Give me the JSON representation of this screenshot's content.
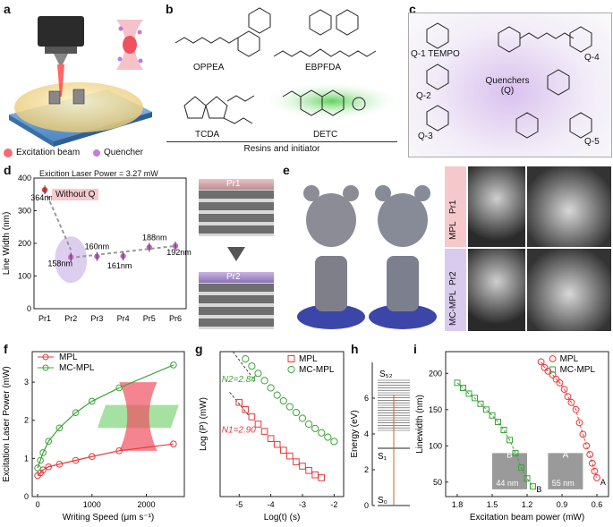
{
  "panel_labels": {
    "a": "a",
    "b": "b",
    "c": "c",
    "d": "d",
    "e": "e",
    "f": "f",
    "g": "g",
    "h": "h",
    "i": "i"
  },
  "panel_a": {
    "legend_excitation": "Excitation beam",
    "legend_quencher": "Quencher",
    "colors": {
      "excitation": "#f26c78",
      "quencher": "#c77ed8"
    }
  },
  "panel_b": {
    "molecules": [
      "OPPEA",
      "EBPFDA",
      "TCDA",
      "DETC"
    ],
    "caption": "Resins and initiator"
  },
  "panel_c": {
    "labels": [
      "Q-1 TEMPO",
      "Q-4",
      "Q-2",
      "Q-3",
      "Q-5"
    ],
    "center": [
      "Quenchers",
      "(Q)"
    ]
  },
  "panel_d": {
    "title": "Exicition Laser Power = 3.27 mW",
    "badge": "Without Q",
    "ylabel": "Line Width (nm)",
    "pr_top": "Pr1",
    "pr_bottom": "Pr2",
    "chart_data": {
      "type": "scatter",
      "categories": [
        "Pr1",
        "Pr2",
        "Pr3",
        "Pr4",
        "Pr5",
        "Pr6"
      ],
      "values": [
        364,
        158,
        160,
        161,
        188,
        192
      ],
      "annotations": [
        "364nm",
        "158nm",
        "160nm",
        "161nm",
        "188nm",
        "192nm"
      ],
      "ylim": [
        0,
        400
      ],
      "yticks": [
        "0",
        "100",
        "200",
        "300",
        "400"
      ]
    }
  },
  "panel_e": {
    "row1": [
      "MPL",
      "Pr1"
    ],
    "row2": [
      "MC-MPL",
      "Pr2"
    ]
  },
  "panel_f": {
    "chart_data": {
      "type": "line",
      "xlabel": "Writing Speed (μm s⁻¹)",
      "ylabel": "Excitation Laser Power (mW)",
      "xlim": [
        -100,
        2700
      ],
      "ylim": [
        0,
        3.8
      ],
      "xticks": [
        0,
        1000,
        2000
      ],
      "yticks": [
        0,
        1,
        2,
        3
      ],
      "series": [
        {
          "name": "MPL",
          "color": "#e8383b",
          "x": [
            0,
            50,
            100,
            200,
            400,
            700,
            1000,
            1500,
            2500
          ],
          "y": [
            0.55,
            0.62,
            0.7,
            0.78,
            0.85,
            0.95,
            1.05,
            1.2,
            1.38
          ]
        },
        {
          "name": "MC-MPL",
          "color": "#3aa537",
          "x": [
            0,
            50,
            100,
            200,
            400,
            700,
            1000,
            1500,
            2500
          ],
          "y": [
            0.75,
            0.95,
            1.15,
            1.45,
            1.8,
            2.2,
            2.5,
            2.85,
            3.45
          ]
        }
      ]
    }
  },
  "panel_g": {
    "chart_data": {
      "type": "scatter",
      "xlabel": "Log(t) (s)",
      "ylabel": "Log (P) (mW)",
      "xlim": [
        -5.6,
        -1.7
      ],
      "ylim": [
        0,
        10
      ],
      "xticks": [
        -5,
        -4,
        -3,
        -2
      ],
      "annotations": [
        "N2=2.84",
        "N1=2.90"
      ],
      "series": [
        {
          "name": "MPL",
          "color": "#e8383b",
          "x": [
            -5.0,
            -4.8,
            -4.6,
            -4.4,
            -4.2,
            -4.0,
            -3.8,
            -3.6,
            -3.4,
            -3.2,
            -3.0,
            -2.8,
            -2.6,
            -2.4
          ],
          "y": [
            6.5,
            6.0,
            5.5,
            5.0,
            4.5,
            4.0,
            3.6,
            3.2,
            2.8,
            2.4,
            2.1,
            1.8,
            1.5,
            1.3
          ]
        },
        {
          "name": "MC-MPL",
          "color": "#3aa537",
          "x": [
            -4.8,
            -4.6,
            -4.4,
            -4.2,
            -4.0,
            -3.8,
            -3.6,
            -3.4,
            -3.2,
            -3.0,
            -2.8,
            -2.6,
            -2.4,
            -2.2,
            -2.0
          ],
          "y": [
            9.5,
            9.0,
            8.5,
            8.0,
            7.5,
            7.0,
            6.6,
            6.2,
            5.8,
            5.4,
            5.0,
            4.7,
            4.4,
            4.1,
            3.8
          ]
        }
      ]
    }
  },
  "panel_h": {
    "ylabel": "Energy (eV)",
    "yticks": [
      0,
      2,
      4,
      6
    ],
    "levels": [
      "S₅₂",
      "S₁",
      "S₀"
    ]
  },
  "panel_i": {
    "inset_b": "B",
    "inset_a": "A",
    "scale_b": "44 nm",
    "scale_a": "55 nm",
    "chart_data": {
      "type": "scatter",
      "xlabel": "Excitation beam power (mW)",
      "ylabel": "Linewidth (nm)",
      "xlim": [
        1.9,
        0.5
      ],
      "ylim": [
        30,
        230
      ],
      "xticks": [
        1.8,
        1.5,
        1.2,
        0.9,
        0.6
      ],
      "yticks": [
        50,
        100,
        150,
        200
      ],
      "series": [
        {
          "name": "MPL",
          "color": "#e8383b",
          "x": [
            1.08,
            1.05,
            1.02,
            0.98,
            0.95,
            0.92,
            0.88,
            0.85,
            0.82,
            0.78,
            0.75,
            0.72,
            0.69,
            0.66,
            0.64,
            0.62,
            0.6
          ],
          "y": [
            216,
            208,
            203,
            198,
            192,
            187,
            178,
            168,
            160,
            150,
            132,
            116,
            100,
            88,
            76,
            65,
            56
          ]
        },
        {
          "name": "MC-MPL",
          "color": "#3aa537",
          "x": [
            1.8,
            1.75,
            1.7,
            1.65,
            1.6,
            1.55,
            1.5,
            1.45,
            1.4,
            1.35,
            1.3,
            1.25,
            1.2,
            1.15
          ],
          "y": [
            187,
            180,
            172,
            166,
            158,
            150,
            142,
            133,
            122,
            108,
            90,
            70,
            55,
            44
          ]
        }
      ]
    }
  }
}
